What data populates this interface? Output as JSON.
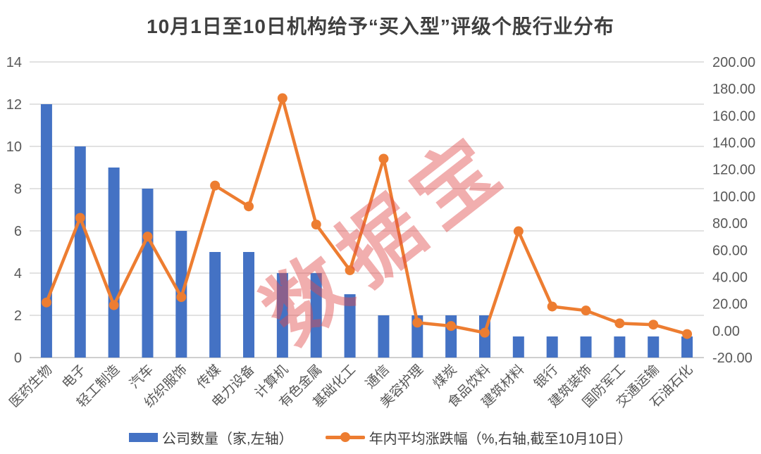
{
  "title": "10月1日至10日机构给予“买入型”评级个股行业分布",
  "watermark": "数据宝",
  "legend": {
    "bars_label": "公司数量（家,左轴）",
    "line_label": "年内平均涨跌幅（%,右轴,截至10月10日）"
  },
  "colors": {
    "bar": "#4472C4",
    "line": "#ED7D31",
    "gridline": "#D9D9D9",
    "axis_line": "#BFBFBF",
    "tick_text": "#595959",
    "title_text": "#3f3f3f",
    "watermark": "rgba(224,76,76,0.45)"
  },
  "chart_data": {
    "type": "bar",
    "subtype": "combo bar+line, dual axis",
    "title": "10月1日至10日机构给予“买入型”评级个股行业分布",
    "categories": [
      "医药生物",
      "电子",
      "轻工制造",
      "汽车",
      "纺织服饰",
      "传媒",
      "电力设备",
      "计算机",
      "有色金属",
      "基础化工",
      "通信",
      "美容护理",
      "煤炭",
      "食品饮料",
      "建筑材料",
      "银行",
      "建筑装饰",
      "国防军工",
      "交通运输",
      "石油石化"
    ],
    "series": [
      {
        "name": "公司数量（家,左轴）",
        "type": "bar",
        "axis": "left",
        "values": [
          12,
          10,
          9,
          8,
          6,
          5,
          5,
          4,
          4,
          3,
          2,
          2,
          2,
          2,
          1,
          1,
          1,
          1,
          1,
          1
        ]
      },
      {
        "name": "年内平均涨跌幅（%,右轴,截至10月10日）",
        "type": "line",
        "axis": "right",
        "values": [
          21,
          84,
          19,
          70,
          25,
          108,
          92.5,
          173,
          79,
          45,
          128,
          6,
          3.5,
          -1.5,
          74,
          18,
          15,
          5.5,
          4.5,
          -2.5
        ]
      }
    ],
    "left_axis": {
      "min": 0,
      "max": 14,
      "step": 2,
      "ticks": [
        "0",
        "2",
        "4",
        "6",
        "8",
        "10",
        "12",
        "14"
      ]
    },
    "right_axis": {
      "min": -20,
      "max": 200,
      "step": 20,
      "ticks": [
        "-20.00",
        "0.00",
        "20.00",
        "40.00",
        "60.00",
        "80.00",
        "100.00",
        "120.00",
        "140.00",
        "160.00",
        "180.00",
        "200.00"
      ]
    },
    "grid": "horizontal gridlines on primary (left) axis",
    "legend_position": "bottom"
  }
}
